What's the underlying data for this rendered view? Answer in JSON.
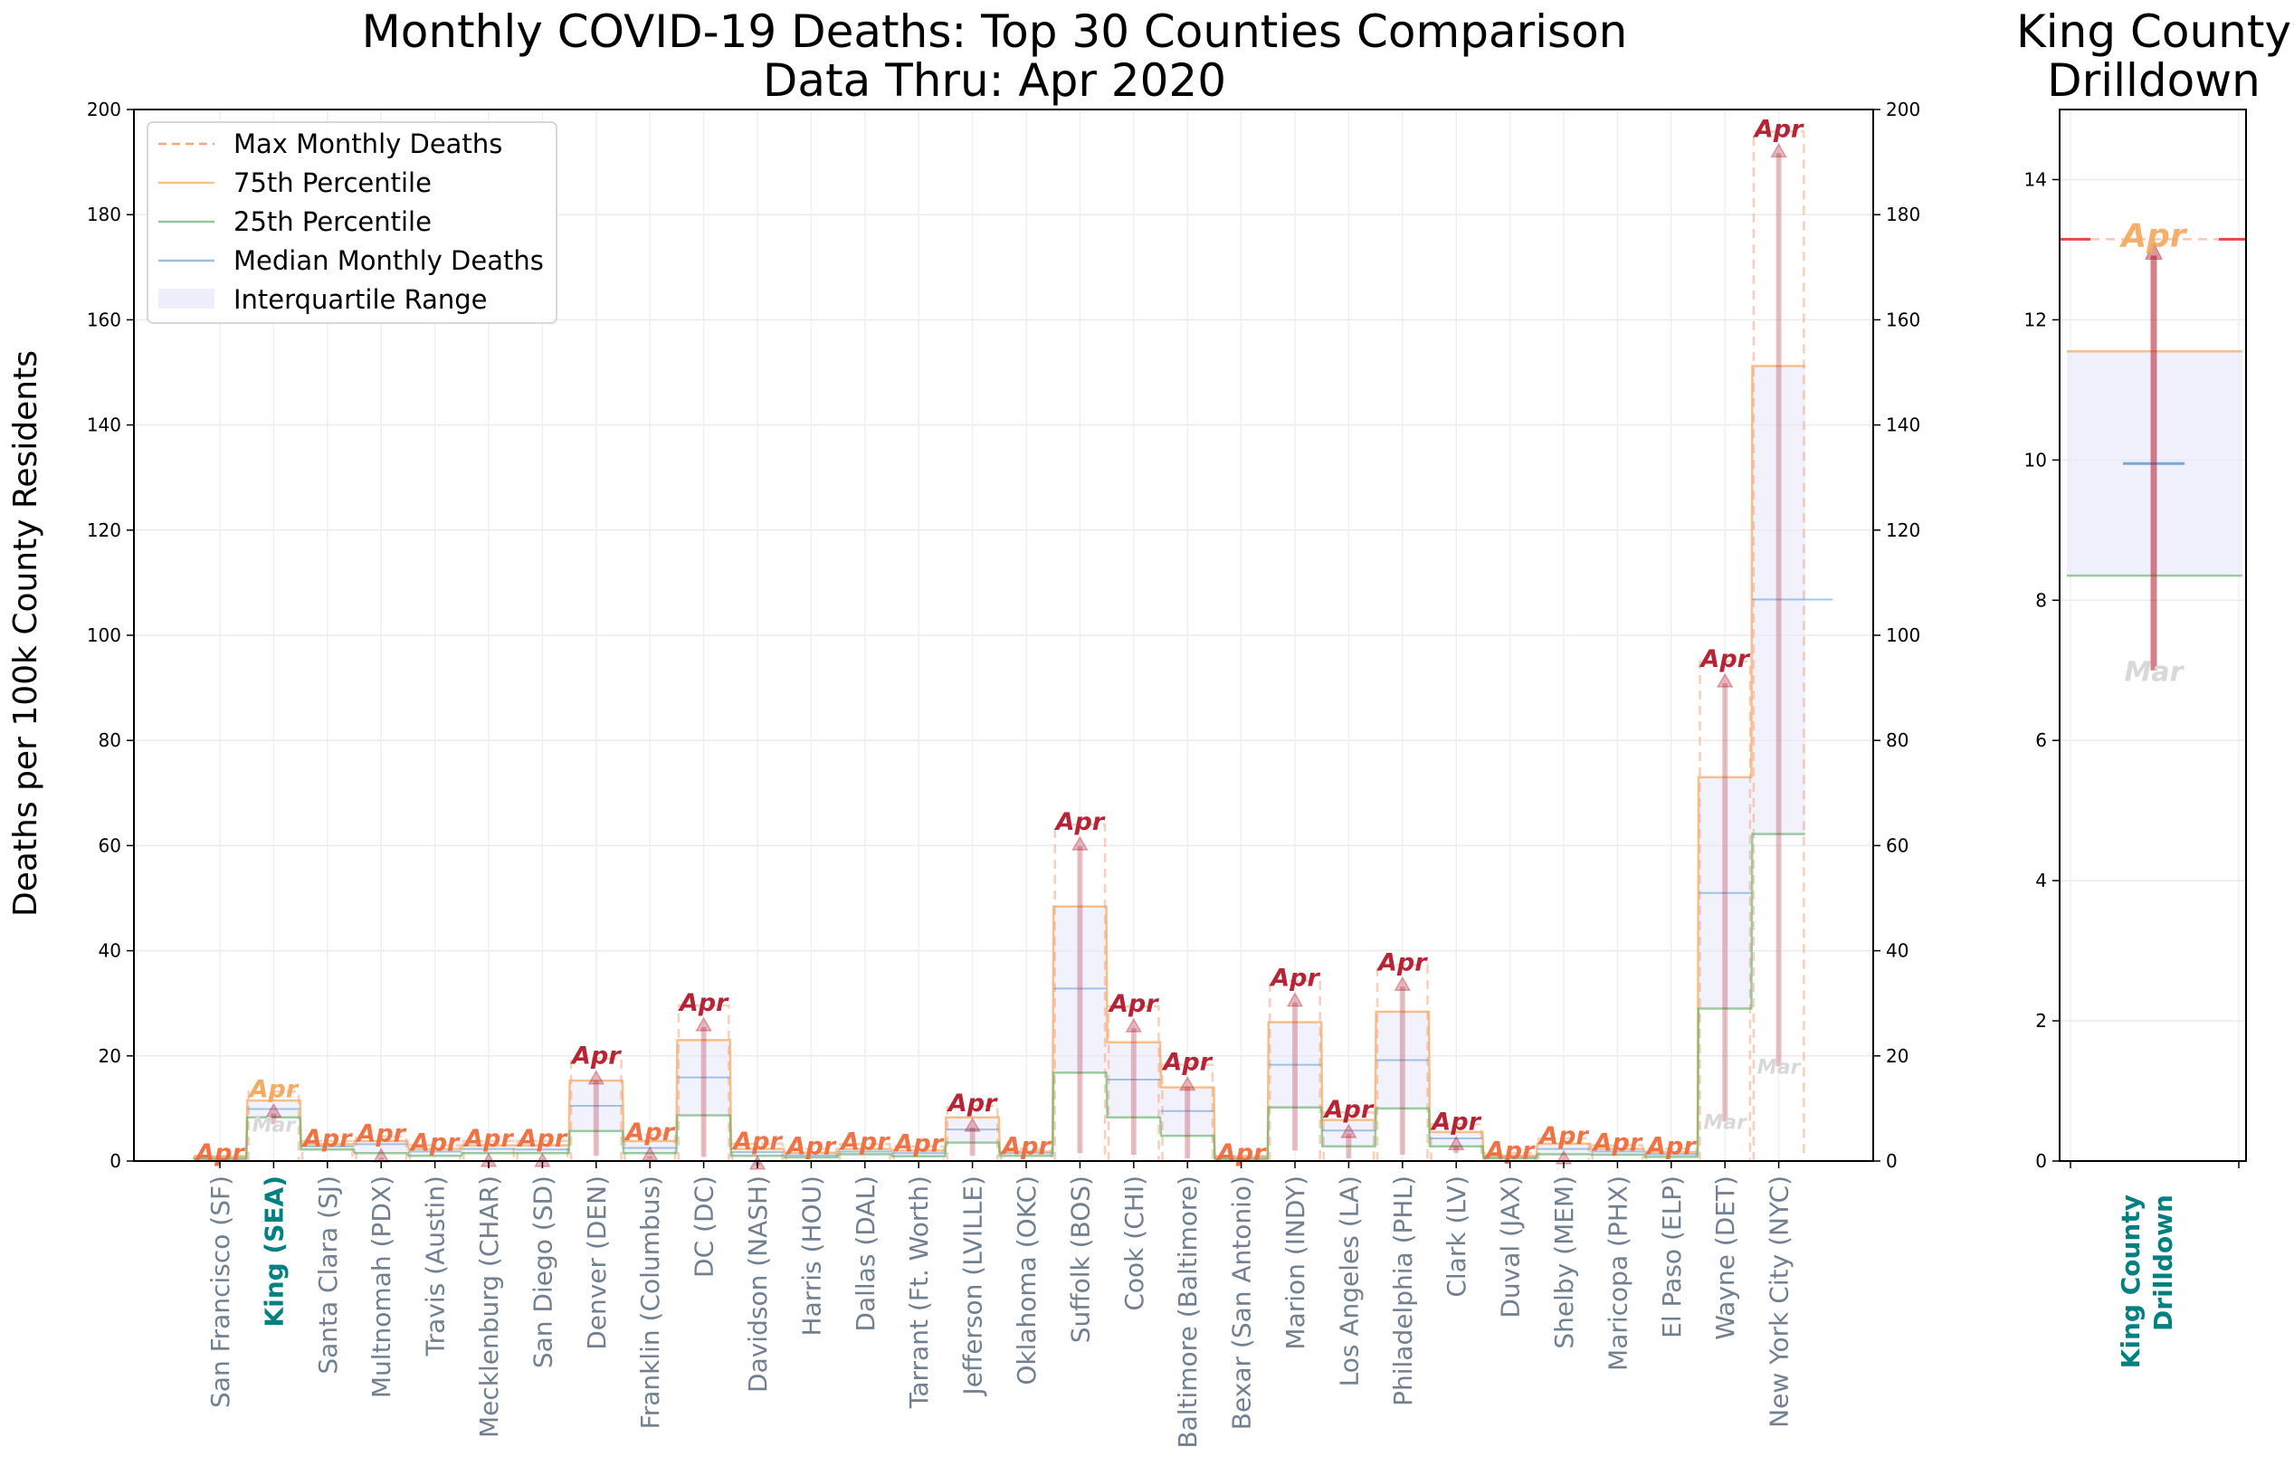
{
  "left_title": [
    "Monthly COVID-19 Deaths: Top 30 Counties Comparison",
    "Data Thru: Apr 2020"
  ],
  "right_title": [
    "King County",
    "Drilldown"
  ],
  "ylabel": "Deaths per 100k County Residents",
  "legend": {
    "max": "Max Monthly Deaths",
    "p75": "75th Percentile",
    "p25": "25th Percentile",
    "median": "Median Monthly Deaths",
    "iqr": "Interquartile Range"
  },
  "colors": {
    "max": "#f4a582",
    "p75": "#f5a65b",
    "p25": "#5aae61",
    "median": "#6a9fd4",
    "iqr": "#e8e8fb",
    "arrow": "#b2182b",
    "highlight": "#008080",
    "county": "#708090"
  },
  "month_labels": {
    "latest": "Apr",
    "prior": "Mar"
  },
  "chart_data": [
    {
      "type": "step",
      "title": "Monthly COVID-19 Deaths: Top 30 Counties Comparison\nData Thru: Apr 2020",
      "ylabel": "Deaths per 100k County Residents",
      "ylim": [
        0,
        200
      ],
      "yticks": [
        0,
        20,
        40,
        60,
        80,
        100,
        120,
        140,
        160,
        180,
        200
      ],
      "legend_position": "upper-left",
      "grid": true,
      "highlight_county": "King (SEA)",
      "counties": [
        {
          "name": "San Francisco (SF)",
          "max": 1.0,
          "p75": 0.8,
          "median": 0.6,
          "p25": 0.3,
          "apr": 1.0,
          "mar": 0.2
        },
        {
          "name": "King (SEA)",
          "max": 13.2,
          "p75": 11.5,
          "median": 9.9,
          "p25": 8.3,
          "apr": 13.2,
          "mar": 7.0
        },
        {
          "name": "Santa Clara (SJ)",
          "max": 3.8,
          "p75": 3.2,
          "median": 2.8,
          "p25": 2.2,
          "apr": 3.8,
          "mar": 1.8
        },
        {
          "name": "Multnomah (PDX)",
          "max": 4.7,
          "p75": 3.8,
          "median": 3.2,
          "p25": 1.5,
          "apr": 4.7,
          "mar": 0.3
        },
        {
          "name": "Travis (Austin)",
          "max": 3.0,
          "p75": 2.3,
          "median": 1.8,
          "p25": 1.0,
          "apr": 3.0,
          "mar": 0.2
        },
        {
          "name": "Mecklenburg (CHAR)",
          "max": 3.8,
          "p75": 3.0,
          "median": 2.3,
          "p25": 1.5,
          "apr": 3.8,
          "mar": 0.3
        },
        {
          "name": "San Diego (SD)",
          "max": 3.8,
          "p75": 3.0,
          "median": 2.2,
          "p25": 1.5,
          "apr": 3.8,
          "mar": 0.3
        },
        {
          "name": "Denver (DEN)",
          "max": 19.5,
          "p75": 15.3,
          "median": 10.5,
          "p25": 5.7,
          "apr": 19.5,
          "mar": 1.0
        },
        {
          "name": "Franklin (Columbus)",
          "max": 5.0,
          "p75": 3.8,
          "median": 2.5,
          "p25": 1.5,
          "apr": 5.0,
          "mar": 0.5
        },
        {
          "name": "DC (DC)",
          "max": 29.6,
          "p75": 23.0,
          "median": 15.9,
          "p25": 8.7,
          "apr": 29.6,
          "mar": 0.8
        },
        {
          "name": "Davidson (NASH)",
          "max": 3.3,
          "p75": 2.3,
          "median": 1.7,
          "p25": 1.0,
          "apr": 3.3,
          "mar": 0.2
        },
        {
          "name": "Harris (HOU)",
          "max": 2.3,
          "p75": 1.6,
          "median": 1.1,
          "p25": 0.7,
          "apr": 2.3,
          "mar": 0.1
        },
        {
          "name": "Dallas (DAL)",
          "max": 3.2,
          "p75": 2.3,
          "median": 1.8,
          "p25": 1.3,
          "apr": 3.2,
          "mar": 0.5
        },
        {
          "name": "Tarrant (Ft. Worth)",
          "max": 2.8,
          "p75": 2.0,
          "median": 1.5,
          "p25": 0.9,
          "apr": 2.8,
          "mar": 0.2
        },
        {
          "name": "Jefferson (LVILLE)",
          "max": 10.5,
          "p75": 8.3,
          "median": 6.0,
          "p25": 3.5,
          "apr": 10.5,
          "mar": 1.0
        },
        {
          "name": "Oklahoma (OKC)",
          "max": 2.3,
          "p75": 1.8,
          "median": 1.5,
          "p25": 1.0,
          "apr": 2.3,
          "mar": 0.5
        },
        {
          "name": "Suffolk (BOS)",
          "max": 64.0,
          "p75": 48.4,
          "median": 32.8,
          "p25": 16.8,
          "apr": 64.0,
          "mar": 1.5
        },
        {
          "name": "Cook (CHI)",
          "max": 29.4,
          "p75": 22.6,
          "median": 15.5,
          "p25": 8.3,
          "apr": 29.4,
          "mar": 1.2
        },
        {
          "name": "Baltimore (Baltimore)",
          "max": 18.3,
          "p75": 14.0,
          "median": 9.5,
          "p25": 4.8,
          "apr": 18.3,
          "mar": 0.5
        },
        {
          "name": "Bexar (San Antonio)",
          "max": 1.0,
          "p75": 0.8,
          "median": 0.6,
          "p25": 0.3,
          "apr": 1.0,
          "mar": 0.1
        },
        {
          "name": "Marion (INDY)",
          "max": 34.3,
          "p75": 26.4,
          "median": 18.3,
          "p25": 10.2,
          "apr": 34.3,
          "mar": 2.0
        },
        {
          "name": "Los Angeles (LA)",
          "max": 9.3,
          "p75": 7.8,
          "median": 5.8,
          "p25": 2.8,
          "apr": 9.3,
          "mar": 0.5
        },
        {
          "name": "Philadelphia (PHL)",
          "max": 37.3,
          "p75": 28.4,
          "median": 19.2,
          "p25": 10.0,
          "apr": 37.3,
          "mar": 1.2
        },
        {
          "name": "Clark (LV)",
          "max": 7.0,
          "p75": 5.5,
          "median": 4.3,
          "p25": 2.8,
          "apr": 7.0,
          "mar": 1.5
        },
        {
          "name": "Duval (JAX)",
          "max": 1.5,
          "p75": 1.0,
          "median": 0.8,
          "p25": 0.5,
          "apr": 1.5,
          "mar": 0.2
        },
        {
          "name": "Shelby (MEM)",
          "max": 4.3,
          "p75": 3.3,
          "median": 2.3,
          "p25": 1.3,
          "apr": 4.3,
          "mar": 0.2
        },
        {
          "name": "Maricopa (PHX)",
          "max": 3.0,
          "p75": 2.3,
          "median": 1.8,
          "p25": 1.2,
          "apr": 3.0,
          "mar": 0.5
        },
        {
          "name": "El Paso (ELP)",
          "max": 2.3,
          "p75": 1.7,
          "median": 1.3,
          "p25": 0.8,
          "apr": 2.3,
          "mar": 0.3
        },
        {
          "name": "Wayne (DET)",
          "max": 95.0,
          "p75": 73.0,
          "median": 51.0,
          "p25": 29.0,
          "apr": 95.0,
          "mar": 7.5
        },
        {
          "name": "New York City (NYC)",
          "max": 195.8,
          "p75": 151.2,
          "median": 106.8,
          "p25": 62.2,
          "apr": 195.8,
          "mar": 18.0
        }
      ]
    },
    {
      "type": "step",
      "title": "King County\nDrilldown",
      "xlabel": "King County\nDrilldown",
      "ylim": [
        0,
        15
      ],
      "yticks": [
        0,
        2,
        4,
        6,
        8,
        10,
        12,
        14
      ],
      "grid": true,
      "county": "King (SEA)",
      "max": 13.15,
      "p75": 11.55,
      "median": 9.95,
      "p25": 8.35,
      "apr": 13.15,
      "mar": 7.0
    }
  ]
}
